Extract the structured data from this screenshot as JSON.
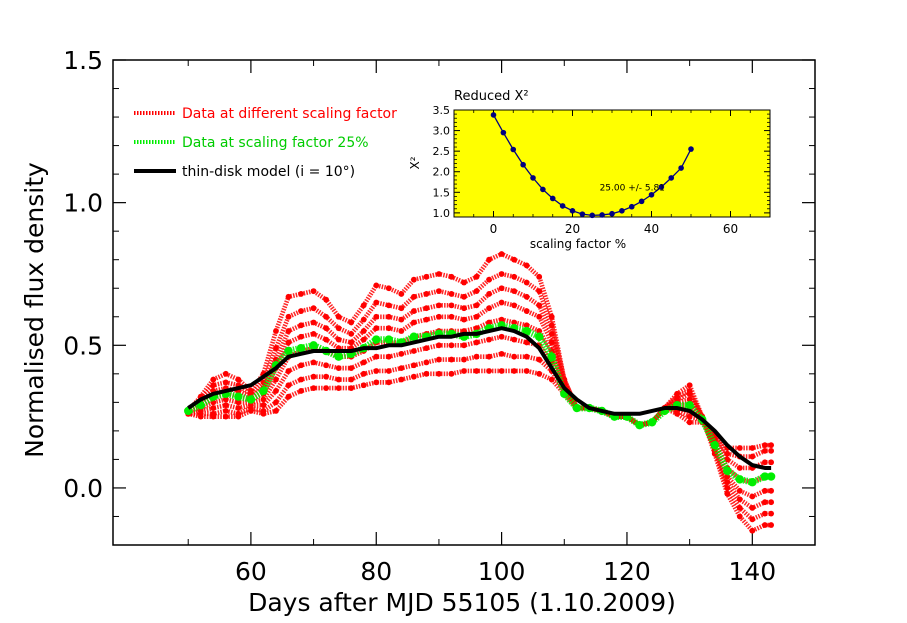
{
  "chart_data": [
    {
      "type": "line",
      "xlabel": "Days after MJD 55105 (1.10.2009)",
      "ylabel": "Normalised flux density",
      "xlim": [
        38,
        150
      ],
      "ylim": [
        -0.2,
        1.5
      ],
      "x_ticks": [
        60,
        80,
        100,
        120,
        140
      ],
      "y_ticks": [
        0.0,
        0.5,
        1.0,
        1.5
      ],
      "y_tick_labels": [
        "0.0",
        "0.5",
        "1.0",
        "1.5"
      ],
      "legend_position": "top-left",
      "x": [
        50,
        52,
        54,
        56,
        58,
        60,
        62,
        64,
        66,
        68,
        70,
        72,
        74,
        76,
        78,
        80,
        82,
        84,
        86,
        88,
        90,
        92,
        94,
        96,
        98,
        100,
        102,
        104,
        106,
        108,
        110,
        112,
        114,
        116,
        118,
        120,
        122,
        124,
        126,
        128,
        130,
        132,
        134,
        136,
        138,
        140,
        142,
        143
      ],
      "series": [
        {
          "name": "Data at different scaling factor",
          "color": "#ff0000",
          "style": "dotted",
          "values": [
            0.27,
            0.32,
            0.38,
            0.4,
            0.38,
            0.34,
            0.4,
            0.55,
            0.67,
            0.68,
            0.69,
            0.66,
            0.6,
            0.58,
            0.64,
            0.71,
            0.7,
            0.68,
            0.73,
            0.74,
            0.75,
            0.74,
            0.72,
            0.74,
            0.8,
            0.82,
            0.8,
            0.78,
            0.74,
            0.6,
            0.38,
            0.28,
            0.28,
            0.27,
            0.25,
            0.25,
            0.22,
            0.23,
            0.28,
            0.33,
            0.36,
            0.25,
            0.12,
            -0.02,
            -0.1,
            -0.15,
            -0.13,
            -0.13
          ]
        },
        {
          "name": "",
          "color": "#ff0000",
          "style": "dotted",
          "values": [
            0.27,
            0.31,
            0.36,
            0.37,
            0.36,
            0.33,
            0.37,
            0.49,
            0.6,
            0.62,
            0.63,
            0.6,
            0.56,
            0.54,
            0.59,
            0.65,
            0.64,
            0.63,
            0.67,
            0.68,
            0.69,
            0.68,
            0.67,
            0.69,
            0.73,
            0.75,
            0.74,
            0.72,
            0.69,
            0.57,
            0.38,
            0.28,
            0.28,
            0.27,
            0.25,
            0.25,
            0.22,
            0.23,
            0.28,
            0.32,
            0.34,
            0.25,
            0.13,
            0.0,
            -0.07,
            -0.11,
            -0.09,
            -0.09
          ]
        },
        {
          "name": "",
          "color": "#ff0000",
          "style": "dotted",
          "values": [
            0.27,
            0.3,
            0.34,
            0.35,
            0.34,
            0.32,
            0.35,
            0.45,
            0.55,
            0.57,
            0.58,
            0.56,
            0.52,
            0.51,
            0.55,
            0.6,
            0.6,
            0.59,
            0.62,
            0.63,
            0.64,
            0.64,
            0.63,
            0.64,
            0.68,
            0.7,
            0.69,
            0.67,
            0.64,
            0.54,
            0.37,
            0.28,
            0.28,
            0.27,
            0.25,
            0.25,
            0.22,
            0.23,
            0.28,
            0.31,
            0.33,
            0.25,
            0.14,
            0.02,
            -0.04,
            -0.07,
            -0.05,
            -0.05
          ]
        },
        {
          "name": "",
          "color": "#ff0000",
          "style": "dotted",
          "values": [
            0.27,
            0.29,
            0.32,
            0.33,
            0.32,
            0.31,
            0.33,
            0.42,
            0.51,
            0.53,
            0.54,
            0.52,
            0.49,
            0.49,
            0.52,
            0.56,
            0.56,
            0.55,
            0.58,
            0.59,
            0.6,
            0.6,
            0.59,
            0.6,
            0.63,
            0.65,
            0.64,
            0.62,
            0.6,
            0.51,
            0.37,
            0.28,
            0.28,
            0.27,
            0.25,
            0.25,
            0.22,
            0.23,
            0.28,
            0.3,
            0.31,
            0.25,
            0.15,
            0.04,
            -0.01,
            -0.03,
            -0.01,
            -0.01
          ]
        },
        {
          "name": "",
          "color": "#ff0000",
          "style": "dotted",
          "values": [
            0.27,
            0.28,
            0.3,
            0.31,
            0.3,
            0.3,
            0.31,
            0.38,
            0.46,
            0.48,
            0.49,
            0.48,
            0.46,
            0.46,
            0.48,
            0.51,
            0.51,
            0.51,
            0.53,
            0.54,
            0.55,
            0.55,
            0.55,
            0.56,
            0.58,
            0.59,
            0.58,
            0.57,
            0.55,
            0.48,
            0.36,
            0.28,
            0.28,
            0.27,
            0.25,
            0.25,
            0.22,
            0.23,
            0.28,
            0.29,
            0.29,
            0.25,
            0.16,
            0.07,
            0.03,
            0.02,
            0.04,
            0.04
          ]
        },
        {
          "name": "",
          "color": "#ff0000",
          "style": "dotted",
          "values": [
            0.26,
            0.27,
            0.28,
            0.29,
            0.28,
            0.29,
            0.29,
            0.34,
            0.41,
            0.43,
            0.44,
            0.43,
            0.42,
            0.42,
            0.44,
            0.46,
            0.46,
            0.47,
            0.48,
            0.49,
            0.5,
            0.5,
            0.5,
            0.51,
            0.52,
            0.53,
            0.52,
            0.51,
            0.5,
            0.44,
            0.35,
            0.28,
            0.28,
            0.27,
            0.25,
            0.25,
            0.22,
            0.23,
            0.28,
            0.28,
            0.27,
            0.24,
            0.17,
            0.1,
            0.07,
            0.07,
            0.09,
            0.09
          ]
        },
        {
          "name": "",
          "color": "#ff0000",
          "style": "dotted",
          "values": [
            0.26,
            0.26,
            0.26,
            0.27,
            0.26,
            0.28,
            0.27,
            0.3,
            0.36,
            0.38,
            0.39,
            0.39,
            0.38,
            0.38,
            0.4,
            0.41,
            0.41,
            0.42,
            0.43,
            0.44,
            0.45,
            0.45,
            0.45,
            0.46,
            0.46,
            0.47,
            0.46,
            0.46,
            0.45,
            0.41,
            0.34,
            0.28,
            0.28,
            0.27,
            0.25,
            0.25,
            0.22,
            0.23,
            0.28,
            0.27,
            0.25,
            0.24,
            0.18,
            0.12,
            0.11,
            0.11,
            0.13,
            0.13
          ]
        },
        {
          "name": "",
          "color": "#ff0000",
          "style": "dotted",
          "values": [
            0.26,
            0.25,
            0.25,
            0.25,
            0.25,
            0.27,
            0.26,
            0.27,
            0.32,
            0.34,
            0.35,
            0.35,
            0.35,
            0.35,
            0.36,
            0.37,
            0.37,
            0.38,
            0.39,
            0.4,
            0.4,
            0.4,
            0.41,
            0.41,
            0.41,
            0.41,
            0.41,
            0.41,
            0.4,
            0.38,
            0.33,
            0.28,
            0.28,
            0.27,
            0.25,
            0.25,
            0.22,
            0.23,
            0.28,
            0.26,
            0.23,
            0.23,
            0.19,
            0.14,
            0.14,
            0.14,
            0.15,
            0.15
          ]
        },
        {
          "name": "Data at scaling factor 25%",
          "color": "#00ee00",
          "style": "dotted",
          "values": [
            0.27,
            0.29,
            0.32,
            0.33,
            0.32,
            0.31,
            0.34,
            0.43,
            0.48,
            0.49,
            0.5,
            0.48,
            0.46,
            0.47,
            0.49,
            0.52,
            0.52,
            0.51,
            0.53,
            0.53,
            0.54,
            0.54,
            0.53,
            0.54,
            0.56,
            0.57,
            0.56,
            0.55,
            0.53,
            0.46,
            0.33,
            0.28,
            0.28,
            0.27,
            0.25,
            0.25,
            0.22,
            0.23,
            0.27,
            0.29,
            0.29,
            0.24,
            0.15,
            0.06,
            0.03,
            0.02,
            0.04,
            0.04
          ]
        },
        {
          "name": "thin-disk model (i = 10°)",
          "color": "#000000",
          "style": "solid",
          "values": [
            0.28,
            0.31,
            0.33,
            0.34,
            0.35,
            0.36,
            0.39,
            0.42,
            0.46,
            0.47,
            0.48,
            0.48,
            0.48,
            0.48,
            0.49,
            0.49,
            0.5,
            0.5,
            0.51,
            0.52,
            0.53,
            0.53,
            0.54,
            0.54,
            0.55,
            0.56,
            0.55,
            0.53,
            0.49,
            0.42,
            0.35,
            0.31,
            0.28,
            0.27,
            0.26,
            0.26,
            0.26,
            0.27,
            0.28,
            0.28,
            0.27,
            0.24,
            0.2,
            0.15,
            0.11,
            0.08,
            0.07,
            0.07
          ]
        }
      ]
    },
    {
      "type": "scatter",
      "title": "Reduced X²",
      "xlabel": "scaling factor %",
      "ylabel": "X²",
      "xlim": [
        -10,
        70
      ],
      "ylim": [
        0.9,
        3.5
      ],
      "x_ticks": [
        0,
        20,
        40,
        60
      ],
      "y_ticks": [
        1.0,
        1.5,
        2.0,
        2.5,
        3.0,
        3.5
      ],
      "y_tick_labels": [
        "1.0",
        "1.5",
        "2.0",
        "2.5",
        "3.0",
        "3.5"
      ],
      "background": "#ffff00",
      "annotation": "25.00 +/- 5.81",
      "x": [
        0,
        2.5,
        5,
        7.5,
        10,
        12.5,
        15,
        17.5,
        20,
        22.5,
        25,
        27.5,
        30,
        32.5,
        35,
        37.5,
        40,
        42.5,
        45,
        47.5,
        50
      ],
      "values": [
        3.38,
        2.95,
        2.54,
        2.17,
        1.85,
        1.57,
        1.35,
        1.17,
        1.05,
        0.97,
        0.94,
        0.95,
        0.98,
        1.05,
        1.15,
        1.28,
        1.44,
        1.63,
        1.85,
        2.09,
        2.55
      ]
    }
  ]
}
